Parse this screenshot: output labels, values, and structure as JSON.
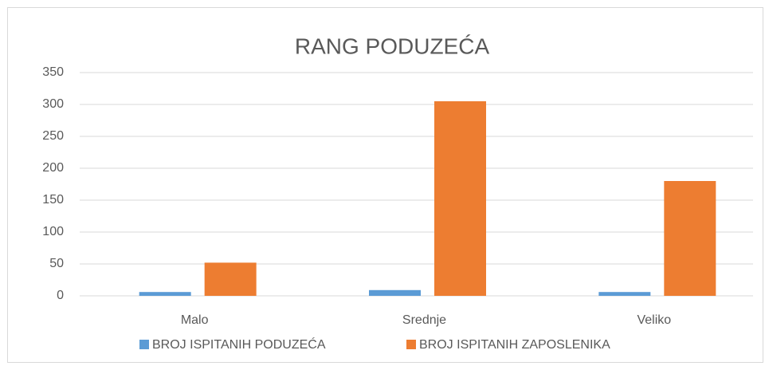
{
  "chart_data": {
    "type": "bar",
    "title": "RANG PODUZEĆA",
    "categories": [
      "Malo",
      "Srednje",
      "Veliko"
    ],
    "series": [
      {
        "name": "BROJ ISPITANIH PODUZEĆA",
        "color": "#5b9bd5",
        "values": [
          6,
          9,
          6
        ]
      },
      {
        "name": "BROJ ISPITANIH ZAPOSLENIKA",
        "color": "#ed7d31",
        "values": [
          52,
          305,
          180
        ]
      }
    ],
    "ylim": [
      0,
      350
    ],
    "yticks": [
      0,
      50,
      100,
      150,
      200,
      250,
      300,
      350
    ],
    "grid": true,
    "legend": "bottom"
  }
}
